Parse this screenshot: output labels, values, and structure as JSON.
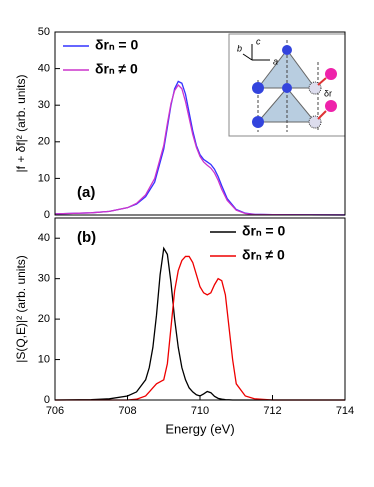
{
  "chart_data": [
    {
      "type": "line",
      "panel_label": "(a)",
      "y_label": "|f + δf|² (arb. units)",
      "inset_labels": [
        "b",
        "c",
        "a",
        "δr"
      ],
      "xlim": [
        706,
        714
      ],
      "ylim": [
        0,
        50
      ],
      "yticks": [
        0,
        10,
        20,
        30,
        40,
        50
      ],
      "legend": "upper left",
      "x": [
        706,
        707,
        707.5,
        708,
        708.25,
        708.5,
        708.75,
        709,
        709.1,
        709.2,
        709.3,
        709.4,
        709.5,
        709.6,
        709.7,
        709.8,
        709.9,
        710,
        710.1,
        710.2,
        710.3,
        710.4,
        710.5,
        710.6,
        710.75,
        711,
        711.25,
        711.5,
        712,
        713,
        714
      ],
      "series": [
        {
          "name": "δrₙ = 0",
          "color": "#3333ff",
          "values": [
            0.3,
            0.6,
            1,
            2,
            3,
            5,
            9,
            18,
            24,
            30,
            34.5,
            36.5,
            36,
            33,
            28,
            23,
            19,
            16.5,
            15.2,
            14.5,
            13.8,
            12.5,
            10.5,
            8,
            4.5,
            1.5,
            0.5,
            0.2,
            0.1,
            0.05,
            0.02
          ]
        },
        {
          "name": "δrₙ ≠ 0",
          "color": "#cc33cc",
          "values": [
            0.3,
            0.6,
            1,
            2,
            3.2,
            5.5,
            10,
            19,
            25,
            30.5,
            34,
            35.5,
            34.5,
            31,
            26.5,
            22,
            18.5,
            16,
            14.5,
            13.6,
            12.8,
            11.5,
            9.5,
            7,
            4,
            1.3,
            0.4,
            0.15,
            0.1,
            0.05,
            0.02
          ]
        }
      ]
    },
    {
      "type": "line",
      "panel_label": "(b)",
      "y_label": "|S(Q,E)|² (arb. units)",
      "x_label": "Energy (eV)",
      "xlim": [
        706,
        714
      ],
      "xticks": [
        706,
        708,
        710,
        712,
        714
      ],
      "ylim": [
        0,
        45
      ],
      "yticks": [
        0,
        10,
        20,
        30,
        40
      ],
      "legend": "upper right",
      "x": [
        706,
        707,
        707.5,
        708,
        708.25,
        708.5,
        708.6,
        708.7,
        708.8,
        708.9,
        709,
        709.1,
        709.2,
        709.3,
        709.4,
        709.5,
        709.6,
        709.7,
        709.8,
        709.9,
        710,
        710.1,
        710.2,
        710.3,
        710.4,
        710.5,
        710.6,
        710.7,
        710.8,
        710.9,
        711,
        711.25,
        711.5,
        712,
        713,
        714
      ],
      "series": [
        {
          "name": "δrₙ = 0",
          "color": "#000000",
          "values": [
            0,
            0.1,
            0.3,
            1,
            2,
            5,
            8,
            13,
            21,
            31,
            37.5,
            36,
            29,
            20,
            13,
            8,
            5,
            3,
            2,
            1.3,
            1,
            1.5,
            2.1,
            1.8,
            0.9,
            0.4,
            0.2,
            0.1,
            0.05,
            0,
            0,
            0,
            0,
            0,
            0,
            0
          ]
        },
        {
          "name": "δrₙ ≠ 0",
          "color": "#ee0000",
          "values": [
            0,
            0,
            0,
            0,
            0.2,
            1,
            2,
            3,
            4,
            4.5,
            5,
            9,
            18,
            27,
            32,
            34.5,
            35.5,
            35.5,
            34,
            31,
            28,
            26.5,
            26,
            26.5,
            28.5,
            30,
            29.5,
            26,
            18,
            10,
            4,
            1,
            0.3,
            0,
            0,
            0
          ]
        }
      ]
    }
  ]
}
